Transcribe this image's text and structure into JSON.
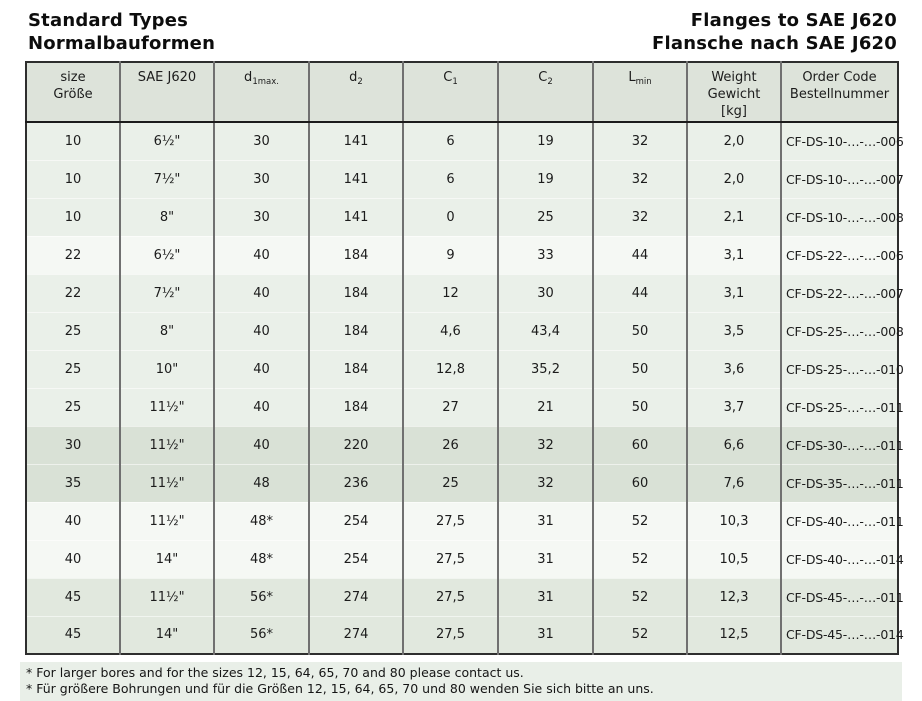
{
  "header": {
    "title_en": "Standard Types",
    "title_de": "Normalbauformen",
    "right_title_en": "Flanges to SAE J620",
    "right_title_de": "Flansche nach SAE J620"
  },
  "colors": {
    "header-bg": "#dde3da",
    "band-a": "#eaf0e9",
    "band-b": "#f5f8f4",
    "band-c": "#d9e1d6",
    "band-d": "#e1e8de",
    "footnote-bg": "#e9efe8",
    "border-dark": "#2e2e2e",
    "border-gray": "#707070"
  },
  "table": {
    "column_keys": [
      "size",
      "sae-j620",
      "d1max",
      "d2",
      "c1",
      "c2",
      "lmin",
      "weight",
      "order-code"
    ],
    "columns": [
      {
        "key": "size",
        "lines": [
          "size",
          "Größe"
        ]
      },
      {
        "key": "sae-j620",
        "lines": [
          "SAE J620"
        ]
      },
      {
        "key": "d1max",
        "base": "d",
        "sub": "1max."
      },
      {
        "key": "d2",
        "base": "d",
        "sub": "2"
      },
      {
        "key": "c1",
        "base": "C",
        "sub": "1"
      },
      {
        "key": "c2",
        "base": "C",
        "sub": "2"
      },
      {
        "key": "lmin",
        "base": "L",
        "sub": "min"
      },
      {
        "key": "weight",
        "lines": [
          "Weight",
          "Gewicht",
          "[kg]"
        ]
      },
      {
        "key": "order-code",
        "lines": [
          "Order Code",
          "Bestellnummer"
        ]
      }
    ],
    "rows": [
      {
        "band": "a",
        "cells": [
          "10",
          "6½\"",
          "30",
          "141",
          "6",
          "19",
          "32",
          "2,0",
          "CF-DS-10-…-…-006"
        ]
      },
      {
        "band": "a",
        "cells": [
          "10",
          "7½\"",
          "30",
          "141",
          "6",
          "19",
          "32",
          "2,0",
          "CF-DS-10-…-…-007"
        ]
      },
      {
        "band": "a",
        "cells": [
          "10",
          "8\"",
          "30",
          "141",
          "0",
          "25",
          "32",
          "2,1",
          "CF-DS-10-…-…-008"
        ]
      },
      {
        "band": "b",
        "cells": [
          "22",
          "6½\"",
          "40",
          "184",
          "9",
          "33",
          "44",
          "3,1",
          "CF-DS-22-…-…-006"
        ]
      },
      {
        "band": "a",
        "cells": [
          "22",
          "7½\"",
          "40",
          "184",
          "12",
          "30",
          "44",
          "3,1",
          "CF-DS-22-…-…-007"
        ]
      },
      {
        "band": "a",
        "cells": [
          "25",
          "8\"",
          "40",
          "184",
          "4,6",
          "43,4",
          "50",
          "3,5",
          "CF-DS-25-…-…-008"
        ]
      },
      {
        "band": "a",
        "cells": [
          "25",
          "10\"",
          "40",
          "184",
          "12,8",
          "35,2",
          "50",
          "3,6",
          "CF-DS-25-…-…-010"
        ]
      },
      {
        "band": "a",
        "cells": [
          "25",
          "11½\"",
          "40",
          "184",
          "27",
          "21",
          "50",
          "3,7",
          "CF-DS-25-…-…-011"
        ]
      },
      {
        "band": "c",
        "cells": [
          "30",
          "11½\"",
          "40",
          "220",
          "26",
          "32",
          "60",
          "6,6",
          "CF-DS-30-…-…-011"
        ]
      },
      {
        "band": "c",
        "cells": [
          "35",
          "11½\"",
          "48",
          "236",
          "25",
          "32",
          "60",
          "7,6",
          "CF-DS-35-…-…-011"
        ]
      },
      {
        "band": "b",
        "cells": [
          "40",
          "11½\"",
          "48*",
          "254",
          "27,5",
          "31",
          "52",
          "10,3",
          "CF-DS-40-…-…-011"
        ]
      },
      {
        "band": "b",
        "cells": [
          "40",
          "14\"",
          "48*",
          "254",
          "27,5",
          "31",
          "52",
          "10,5",
          "CF-DS-40-…-…-014"
        ]
      },
      {
        "band": "d",
        "cells": [
          "45",
          "11½\"",
          "56*",
          "274",
          "27,5",
          "31",
          "52",
          "12,3",
          "CF-DS-45-…-…-011"
        ]
      },
      {
        "band": "d",
        "cells": [
          "45",
          "14\"",
          "56*",
          "274",
          "27,5",
          "31",
          "52",
          "12,5",
          "CF-DS-45-…-…-014"
        ]
      }
    ]
  },
  "footnotes": [
    "* For larger bores and for the sizes 12, 15, 64, 65, 70 and 80 please contact us.",
    "* Für größere Bohrungen und für die Größen 12, 15, 64, 65, 70 und 80 wenden Sie sich bitte an uns."
  ]
}
